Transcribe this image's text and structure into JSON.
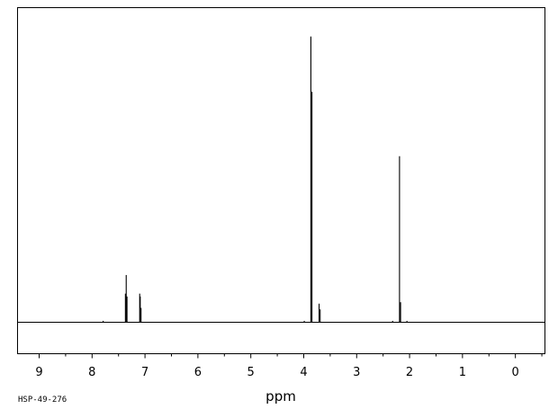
{
  "chart_data": {
    "type": "line",
    "xlabel": "ppm",
    "x_reversed": true,
    "xlim": [
      9.4,
      -0.55
    ],
    "ylim": [
      0,
      1
    ],
    "grid": false,
    "x_ticks": [
      9,
      8,
      7,
      6,
      5,
      4,
      3,
      2,
      1,
      0
    ],
    "x_tick_labels": [
      "9",
      "8",
      "7",
      "6",
      "5",
      "4",
      "3",
      "2",
      "1",
      "0"
    ],
    "peaks": [
      {
        "ppm": 7.79,
        "height": 0.005
      },
      {
        "ppm": 7.37,
        "height": 0.1
      },
      {
        "ppm": 7.355,
        "height": 0.165
      },
      {
        "ppm": 7.34,
        "height": 0.09
      },
      {
        "ppm": 7.1,
        "height": 0.1
      },
      {
        "ppm": 7.09,
        "height": 0.09
      },
      {
        "ppm": 7.075,
        "height": 0.05
      },
      {
        "ppm": 3.99,
        "height": 0.005
      },
      {
        "ppm": 3.865,
        "height": 0.998
      },
      {
        "ppm": 3.845,
        "height": 0.805
      },
      {
        "ppm": 3.71,
        "height": 0.065
      },
      {
        "ppm": 3.69,
        "height": 0.045
      },
      {
        "ppm": 2.32,
        "height": 0.005
      },
      {
        "ppm": 2.19,
        "height": 0.58
      },
      {
        "ppm": 2.17,
        "height": 0.07
      },
      {
        "ppm": 2.05,
        "height": 0.005
      }
    ]
  },
  "sample_id": "HSP-49-276"
}
